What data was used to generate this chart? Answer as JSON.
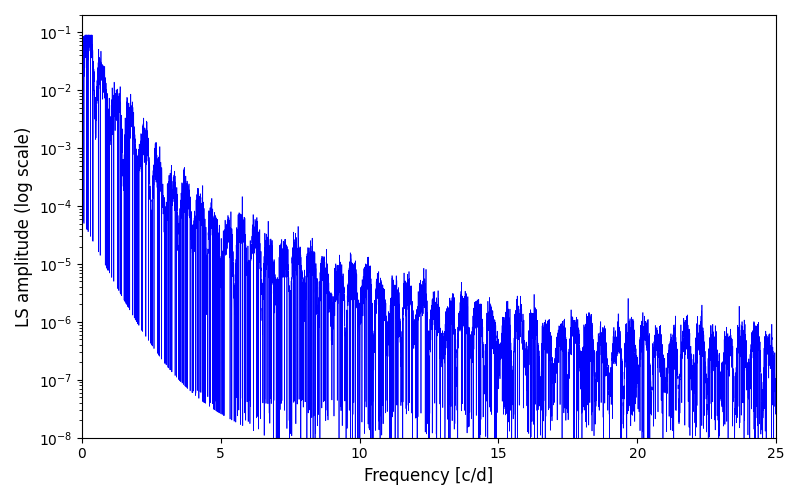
{
  "xlabel": "Frequency [c/d]",
  "ylabel": "LS amplitude (log scale)",
  "line_color": "#0000ff",
  "xlim": [
    0,
    25
  ],
  "ylim": [
    1e-08,
    0.2
  ],
  "xmin": 0.0,
  "xmax": 25.0,
  "n_points": 8000,
  "seed": 7,
  "figsize": [
    8.0,
    5.0
  ],
  "dpi": 100,
  "background_color": "#ffffff",
  "linewidth": 0.5
}
